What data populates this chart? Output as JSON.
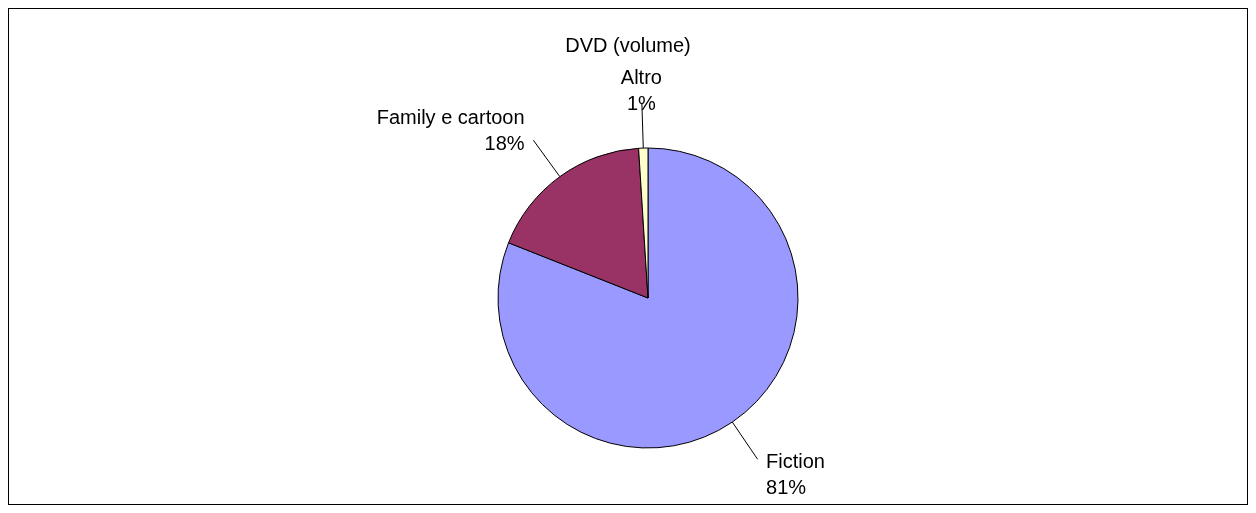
{
  "chart_data": {
    "type": "pie",
    "title": "DVD (volume)",
    "categories": [
      "Fiction",
      "Family e cartoon",
      "Altro"
    ],
    "values": [
      81,
      18,
      1
    ],
    "value_labels": [
      "81%",
      "18%",
      "1%"
    ],
    "colors": [
      "#9999ff",
      "#993366",
      "#ffffcc"
    ]
  }
}
